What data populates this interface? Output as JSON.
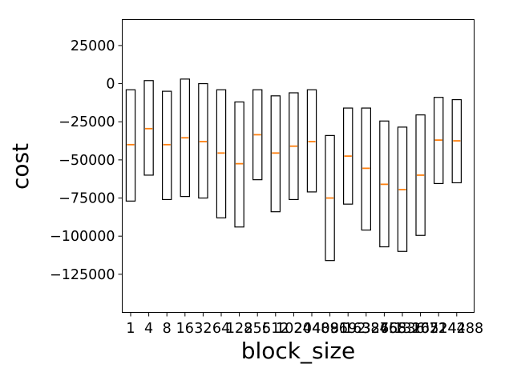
{
  "chart_data": {
    "type": "box",
    "xlabel": "block_size",
    "ylabel": "cost",
    "ylim": [
      -150000,
      42000
    ],
    "y_ticks": [
      25000,
      0,
      -25000,
      -50000,
      -75000,
      -100000,
      -125000
    ],
    "y_tick_labels": [
      "25000",
      "0",
      "−25000",
      "−50000",
      "−75000",
      "−100000",
      "−125000"
    ],
    "categories": [
      "1",
      "4",
      "8",
      "16",
      "32",
      "64",
      "128",
      "256",
      "512",
      "1024",
      "2048",
      "4096",
      "8192",
      "16384",
      "32768",
      "65536",
      "131072",
      "262144",
      "524288"
    ],
    "highlight_category": "4096",
    "highlight_color": "#d62728",
    "box_color": "#000000",
    "median_color": "#ff7f0e",
    "boxes": [
      {
        "low": -77000,
        "high": -4000,
        "median": -40000
      },
      {
        "low": -60000,
        "high": 2000,
        "median": -29500
      },
      {
        "low": -76000,
        "high": -5000,
        "median": -40000
      },
      {
        "low": -74000,
        "high": 3000,
        "median": -35500
      },
      {
        "low": -75000,
        "high": 0,
        "median": -38000
      },
      {
        "low": -88000,
        "high": -4000,
        "median": -45500
      },
      {
        "low": -94000,
        "high": -12000,
        "median": -52500
      },
      {
        "low": -63000,
        "high": -4000,
        "median": -33500
      },
      {
        "low": -84000,
        "high": -8000,
        "median": -45500
      },
      {
        "low": -76000,
        "high": -6000,
        "median": -41000
      },
      {
        "low": -71000,
        "high": -4000,
        "median": -38000
      },
      {
        "low": -116000,
        "high": -34000,
        "median": -75000
      },
      {
        "low": -79000,
        "high": -16000,
        "median": -47500
      },
      {
        "low": -96000,
        "high": -16000,
        "median": -55500
      },
      {
        "low": -107000,
        "high": -24500,
        "median": -66000
      },
      {
        "low": -110000,
        "high": -28500,
        "median": -69500
      },
      {
        "low": -99500,
        "high": -20500,
        "median": -60000
      },
      {
        "low": -65500,
        "high": -9000,
        "median": -37000
      },
      {
        "low": -65000,
        "high": -10500,
        "median": -37500
      }
    ]
  }
}
